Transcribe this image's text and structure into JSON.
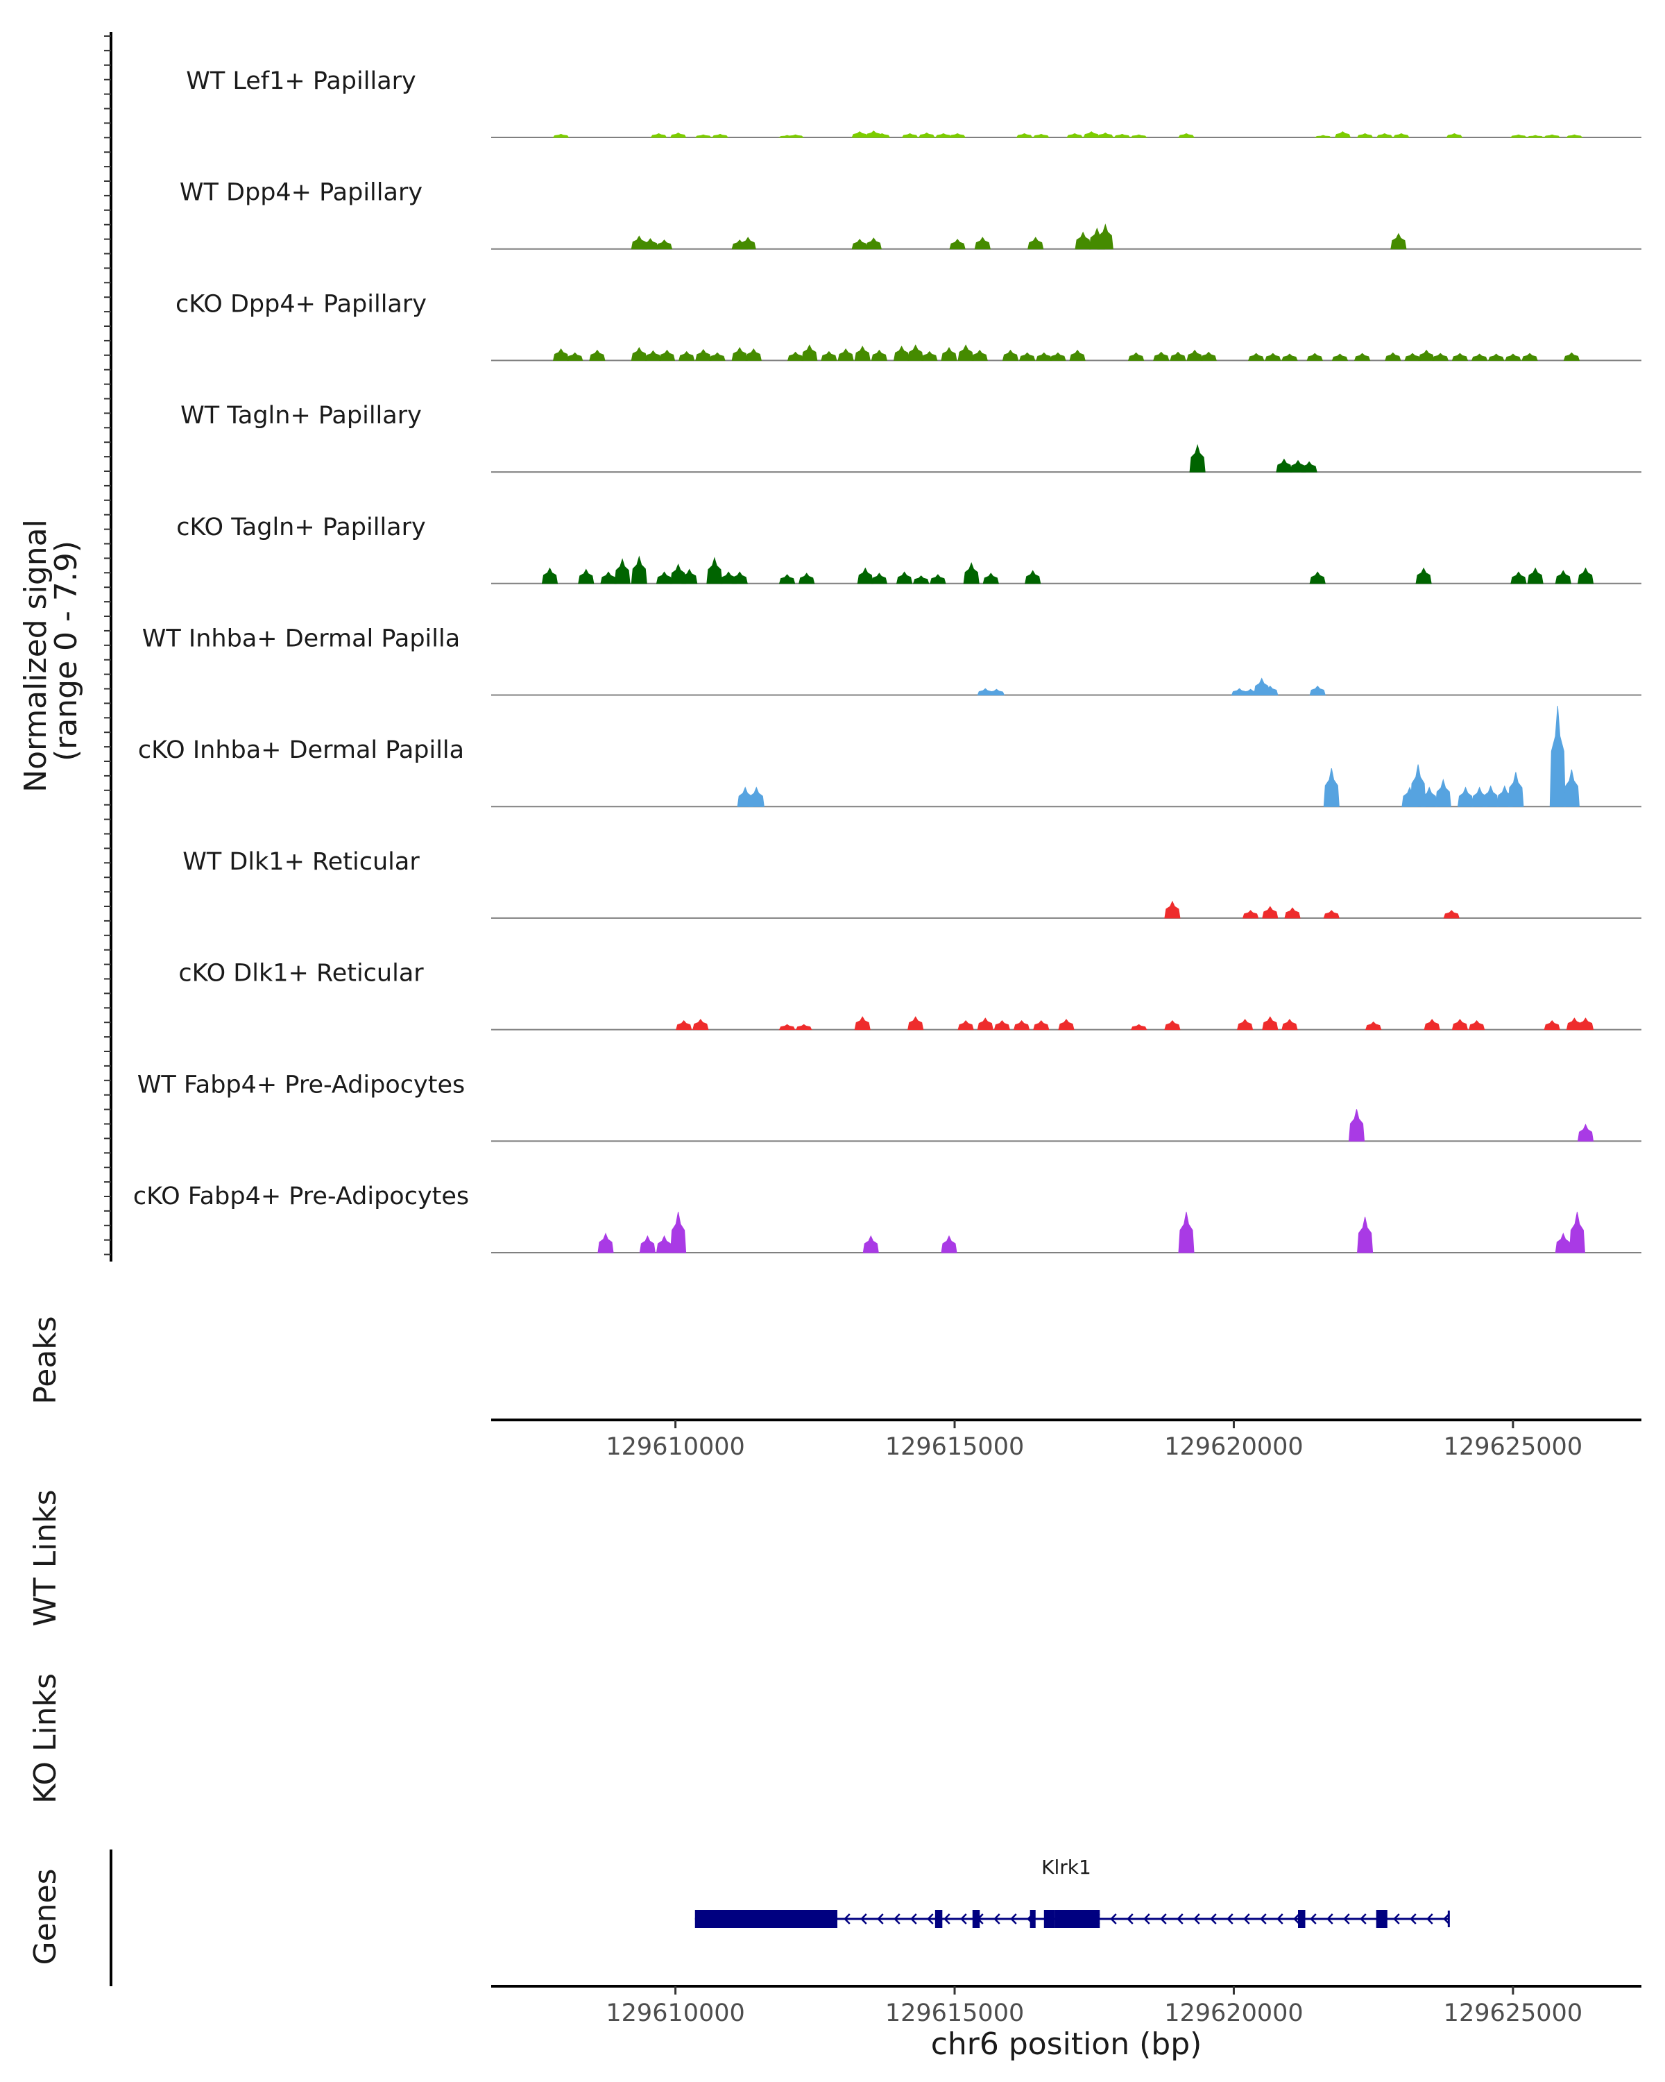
{
  "chart_data": {
    "type": "area",
    "title": "",
    "signal_axis_title": [
      "Normalized signal",
      "(range 0 - 7.9)"
    ],
    "signal_range": [
      0,
      7.9
    ],
    "xlabel": "chr6 position (bp)",
    "xlim": [
      129606700,
      129627300
    ],
    "x_ticks": [
      129610000,
      129615000,
      129620000,
      129625000
    ],
    "x_tick_labels": [
      "129610000",
      "129615000",
      "129620000",
      "129625000"
    ],
    "panel_labels": {
      "peaks": "Peaks",
      "wt_links": "WT Links",
      "ko_links": "KO Links",
      "genes": "Genes"
    },
    "series": [
      {
        "name": "WT Lef1+ Papillary",
        "color": "#7CCD00",
        "peaks": [
          [
            129607950,
            0.25
          ],
          [
            129609700,
            0.3
          ],
          [
            129610050,
            0.35
          ],
          [
            129610500,
            0.2
          ],
          [
            129610800,
            0.25
          ],
          [
            129612000,
            0.15
          ],
          [
            129612150,
            0.2
          ],
          [
            129613300,
            0.45
          ],
          [
            129613550,
            0.5
          ],
          [
            129613700,
            0.3
          ],
          [
            129614200,
            0.3
          ],
          [
            129614500,
            0.35
          ],
          [
            129614800,
            0.3
          ],
          [
            129615050,
            0.3
          ],
          [
            129616250,
            0.3
          ],
          [
            129616550,
            0.25
          ],
          [
            129617150,
            0.3
          ],
          [
            129617450,
            0.45
          ],
          [
            129617700,
            0.35
          ],
          [
            129618000,
            0.25
          ],
          [
            129618300,
            0.2
          ],
          [
            129619150,
            0.3
          ],
          [
            129621600,
            0.15
          ],
          [
            129621950,
            0.45
          ],
          [
            129622350,
            0.3
          ],
          [
            129622700,
            0.3
          ],
          [
            129623000,
            0.3
          ],
          [
            129623950,
            0.3
          ],
          [
            129625100,
            0.2
          ],
          [
            129625400,
            0.15
          ],
          [
            129625700,
            0.2
          ],
          [
            129626100,
            0.2
          ]
        ]
      },
      {
        "name": "WT Dpp4+ Papillary",
        "color": "#458B00",
        "peaks": [
          [
            129609350,
            1.0
          ],
          [
            129609550,
            0.8
          ],
          [
            129609800,
            0.7
          ],
          [
            129611150,
            0.7
          ],
          [
            129611300,
            0.9
          ],
          [
            129613300,
            0.75
          ],
          [
            129613550,
            0.85
          ],
          [
            129615050,
            0.75
          ],
          [
            129615500,
            0.9
          ],
          [
            129616450,
            0.9
          ],
          [
            129617300,
            1.3
          ],
          [
            129617550,
            1.6
          ],
          [
            129617700,
            1.9
          ],
          [
            129622950,
            1.2
          ]
        ]
      },
      {
        "name": "cKO Dpp4+ Papillary",
        "color": "#458B00",
        "peaks": [
          [
            129607950,
            0.9
          ],
          [
            129608200,
            0.6
          ],
          [
            129608600,
            0.8
          ],
          [
            129609350,
            1.0
          ],
          [
            129609600,
            0.75
          ],
          [
            129609850,
            0.8
          ],
          [
            129610200,
            0.7
          ],
          [
            129610500,
            0.85
          ],
          [
            129610750,
            0.6
          ],
          [
            129611150,
            1.0
          ],
          [
            129611400,
            0.9
          ],
          [
            129612150,
            0.65
          ],
          [
            129612400,
            1.2
          ],
          [
            129612750,
            0.7
          ],
          [
            129613050,
            0.9
          ],
          [
            129613350,
            1.1
          ],
          [
            129613650,
            0.8
          ],
          [
            129614050,
            1.1
          ],
          [
            129614300,
            1.2
          ],
          [
            129614550,
            0.7
          ],
          [
            129614900,
            1.0
          ],
          [
            129615200,
            1.2
          ],
          [
            129615450,
            0.8
          ],
          [
            129616000,
            0.8
          ],
          [
            129616300,
            0.6
          ],
          [
            129616600,
            0.6
          ],
          [
            129616850,
            0.6
          ],
          [
            129617200,
            0.8
          ],
          [
            129618250,
            0.6
          ],
          [
            129618700,
            0.65
          ],
          [
            129619000,
            0.65
          ],
          [
            129619300,
            0.8
          ],
          [
            129619550,
            0.65
          ],
          [
            129620400,
            0.55
          ],
          [
            129620700,
            0.55
          ],
          [
            129621000,
            0.5
          ],
          [
            129621450,
            0.55
          ],
          [
            129621900,
            0.5
          ],
          [
            129622300,
            0.55
          ],
          [
            129622850,
            0.6
          ],
          [
            129623200,
            0.55
          ],
          [
            129623450,
            0.8
          ],
          [
            129623700,
            0.55
          ],
          [
            129624050,
            0.55
          ],
          [
            129624400,
            0.5
          ],
          [
            129624700,
            0.5
          ],
          [
            129625000,
            0.5
          ],
          [
            129625300,
            0.55
          ],
          [
            129626050,
            0.6
          ]
        ]
      },
      {
        "name": "WT Tagln+ Papillary",
        "color": "#006400",
        "peaks": [
          [
            129619350,
            2.1
          ],
          [
            129620900,
            1.0
          ],
          [
            129621150,
            0.9
          ],
          [
            129621350,
            0.8
          ]
        ]
      },
      {
        "name": "cKO Tagln+ Papillary",
        "color": "#006400",
        "peaks": [
          [
            129607750,
            1.2
          ],
          [
            129608400,
            1.1
          ],
          [
            129608800,
            0.9
          ],
          [
            129609050,
            1.9
          ],
          [
            129609350,
            2.1
          ],
          [
            129609800,
            0.9
          ],
          [
            129610050,
            1.5
          ],
          [
            129610250,
            1.1
          ],
          [
            129610700,
            2.0
          ],
          [
            129610950,
            0.9
          ],
          [
            129611150,
            0.9
          ],
          [
            129612000,
            0.7
          ],
          [
            129612350,
            0.8
          ],
          [
            129613400,
            1.2
          ],
          [
            129613650,
            0.8
          ],
          [
            129614100,
            0.9
          ],
          [
            129614400,
            0.6
          ],
          [
            129614700,
            0.7
          ],
          [
            129615300,
            1.6
          ],
          [
            129615650,
            0.8
          ],
          [
            129616400,
            1.0
          ],
          [
            129621500,
            0.9
          ],
          [
            129623400,
            1.2
          ],
          [
            129625100,
            0.9
          ],
          [
            129625400,
            1.2
          ],
          [
            129625900,
            1.0
          ],
          [
            129626300,
            1.2
          ]
        ]
      },
      {
        "name": "WT Inhba+ Dermal Papilla",
        "color": "#56A3E0",
        "peaks": [
          [
            129615550,
            0.5
          ],
          [
            129615750,
            0.45
          ],
          [
            129620100,
            0.5
          ],
          [
            129620300,
            0.45
          ],
          [
            129620500,
            1.3
          ],
          [
            129620650,
            0.7
          ],
          [
            129621500,
            0.7
          ]
        ]
      },
      {
        "name": "cKO Inhba+ Dermal Papilla",
        "color": "#56A3E0",
        "peaks": [
          [
            129611250,
            1.5
          ],
          [
            129611450,
            1.5
          ],
          [
            129621750,
            3.0
          ],
          [
            129623150,
            1.5
          ],
          [
            129623300,
            3.3
          ],
          [
            129623500,
            1.5
          ],
          [
            129623750,
            2.1
          ],
          [
            129624150,
            1.5
          ],
          [
            129624400,
            1.5
          ],
          [
            129624600,
            1.6
          ],
          [
            129624850,
            1.6
          ],
          [
            129625050,
            2.7
          ],
          [
            129625800,
            7.9
          ],
          [
            129626050,
            2.9
          ]
        ]
      },
      {
        "name": "WT Dlk1+ Reticular",
        "color": "#EE2C2C",
        "peaks": [
          [
            129618900,
            1.3
          ],
          [
            129620300,
            0.6
          ],
          [
            129620650,
            0.9
          ],
          [
            129621050,
            0.8
          ],
          [
            129621750,
            0.6
          ],
          [
            129623900,
            0.6
          ]
        ]
      },
      {
        "name": "cKO Dlk1+ Reticular",
        "color": "#EE2C2C",
        "peaks": [
          [
            129610150,
            0.7
          ],
          [
            129610450,
            0.8
          ],
          [
            129612000,
            0.4
          ],
          [
            129612300,
            0.4
          ],
          [
            129613350,
            1.0
          ],
          [
            129614300,
            1.0
          ],
          [
            129615200,
            0.7
          ],
          [
            129615550,
            0.9
          ],
          [
            129615850,
            0.7
          ],
          [
            129616200,
            0.7
          ],
          [
            129616550,
            0.7
          ],
          [
            129617000,
            0.8
          ],
          [
            129618300,
            0.4
          ],
          [
            129618900,
            0.7
          ],
          [
            129620200,
            0.8
          ],
          [
            129620650,
            1.0
          ],
          [
            129621000,
            0.8
          ],
          [
            129622500,
            0.6
          ],
          [
            129623550,
            0.8
          ],
          [
            129624050,
            0.8
          ],
          [
            129624350,
            0.7
          ],
          [
            129625700,
            0.7
          ],
          [
            129626100,
            0.9
          ],
          [
            129626300,
            0.9
          ]
        ]
      },
      {
        "name": "WT Fabp4+ Pre-Adipocytes",
        "color": "#A93AE5",
        "peaks": [
          [
            129622200,
            2.5
          ],
          [
            129626300,
            1.3
          ]
        ]
      },
      {
        "name": "cKO Fabp4+ Pre-Adipocytes",
        "color": "#A93AE5",
        "peaks": [
          [
            129608750,
            1.5
          ],
          [
            129609500,
            1.3
          ],
          [
            129609800,
            1.3
          ],
          [
            129610050,
            3.2
          ],
          [
            129613500,
            1.3
          ],
          [
            129614900,
            1.3
          ],
          [
            129619150,
            3.2
          ],
          [
            129622350,
            2.8
          ],
          [
            129625900,
            1.5
          ],
          [
            129626150,
            3.2
          ]
        ]
      }
    ],
    "gene": {
      "name": "Klrk1",
      "color": "#000080",
      "start": 129610350,
      "end": 129623850,
      "strand": "-",
      "exons": [
        [
          129610350,
          129612900
        ],
        [
          129614650,
          129614780
        ],
        [
          129615320,
          129615450
        ],
        [
          129616350,
          129616450
        ],
        [
          129616600,
          129616800
        ],
        [
          129616800,
          129617600
        ],
        [
          129621150,
          129621280
        ],
        [
          129622550,
          129622750
        ]
      ]
    }
  }
}
